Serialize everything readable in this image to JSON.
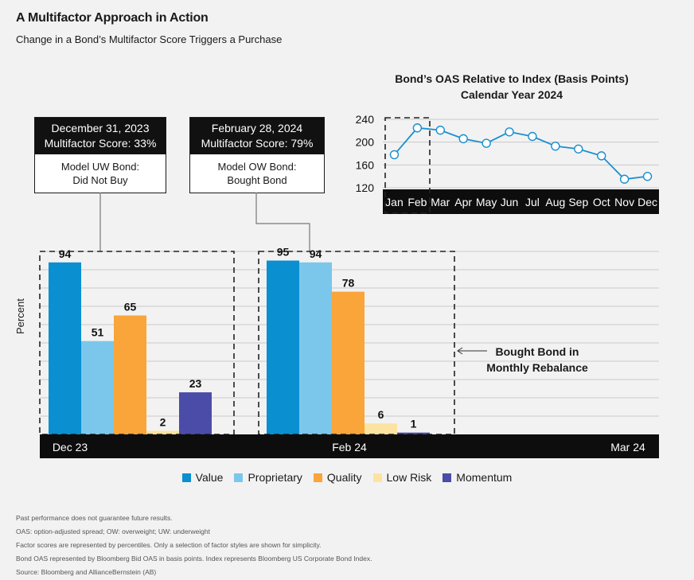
{
  "header": {
    "title": "A Multifactor Approach in Action",
    "subtitle": "Change in a Bond’s Multifactor Score Triggers a Purchase"
  },
  "callouts": [
    {
      "date": "December 31, 2023",
      "score": "Multifactor Score: 33%",
      "line1": "Model UW Bond:",
      "line2": "Did Not Buy"
    },
    {
      "date": "February 28, 2024",
      "score": "Multifactor Score: 79%",
      "line1": "Model OW Bond:",
      "line2": "Bought Bond"
    }
  ],
  "annotation": {
    "line1": "Bought Bond in",
    "line2": "Monthly Rebalance",
    "arrow": "←"
  },
  "legend": [
    {
      "name": "Value",
      "color": "#0a8fd1"
    },
    {
      "name": "Proprietary",
      "color": "#7ac7eb"
    },
    {
      "name": "Quality",
      "color": "#f9a53a"
    },
    {
      "name": "Low Risk",
      "color": "#fde3a1"
    },
    {
      "name": "Momentum",
      "color": "#4b4ba8"
    }
  ],
  "notes": [
    "Past performance does not guarantee future results.",
    "OAS: option-adjusted spread; OW: overweight; UW: underweight",
    "Factor scores are represented by percentiles. Only a selection of factor styles are shown for simplicity.",
    "Bond OAS represented by Bloomberg Bid OAS in basis points. Index represents Bloomberg US Corporate Bond Index.",
    "Source: Bloomberg and AllianceBernstein (AB)"
  ],
  "chart_data": [
    {
      "type": "bar",
      "ylabel": "Percent",
      "categories": [
        "Dec 23",
        "Feb 24",
        "Mar 24"
      ],
      "ylim": [
        0,
        100
      ],
      "grid": true,
      "series": [
        {
          "name": "Value",
          "color": "#0a8fd1",
          "values": [
            94,
            95,
            null
          ]
        },
        {
          "name": "Proprietary",
          "color": "#7ac7eb",
          "values": [
            51,
            94,
            null
          ]
        },
        {
          "name": "Quality",
          "color": "#f9a53a",
          "values": [
            65,
            78,
            null
          ]
        },
        {
          "name": "Low Risk",
          "color": "#fde3a1",
          "values": [
            2,
            6,
            null
          ]
        },
        {
          "name": "Momentum",
          "color": "#4b4ba8",
          "values": [
            23,
            1,
            null
          ]
        }
      ],
      "legend": "bottom"
    },
    {
      "type": "line",
      "title": "Bond’s OAS Relative to Index (Basis Points)",
      "subtitle": "Calendar Year 2024",
      "x": [
        "Jan",
        "Feb",
        "Mar",
        "Apr",
        "May",
        "Jun",
        "Jul",
        "Aug",
        "Sep",
        "Oct",
        "Nov",
        "Dec"
      ],
      "y": [
        178,
        225,
        221,
        206,
        198,
        218,
        210,
        193,
        188,
        176,
        135,
        140
      ],
      "yticks": [
        120,
        160,
        200,
        240
      ],
      "ylim": [
        120,
        240
      ],
      "grid": true,
      "color": "#1a8fd0",
      "highlight": "Feb"
    }
  ]
}
